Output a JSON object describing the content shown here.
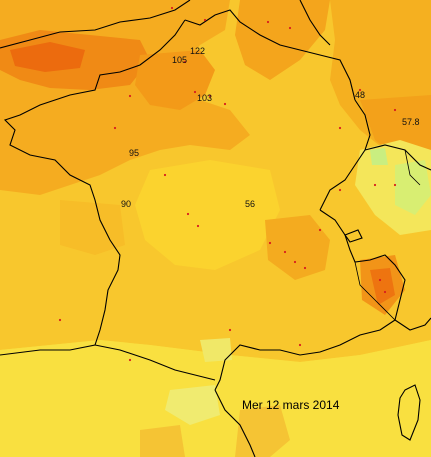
{
  "map": {
    "date_label": "Mer 12 mars 2014",
    "values": [
      {
        "id": "paris-north",
        "text": "122"
      },
      {
        "id": "oise",
        "text": "105"
      },
      {
        "id": "paris",
        "text": "103"
      },
      {
        "id": "alsace",
        "text": "48"
      },
      {
        "id": "basel",
        "text": "57.8"
      },
      {
        "id": "centre-west",
        "text": "95"
      },
      {
        "id": "poitou",
        "text": "90"
      },
      {
        "id": "centre",
        "text": "56"
      }
    ],
    "colors": {
      "sea": "#f7d93c",
      "land_base": "#f8c72d",
      "high": "#f39a18",
      "very_high": "#ee7410",
      "low": "#f4e65a",
      "lowest": "#d8ee72",
      "border": "#000000",
      "station": "#d81e1e"
    }
  }
}
